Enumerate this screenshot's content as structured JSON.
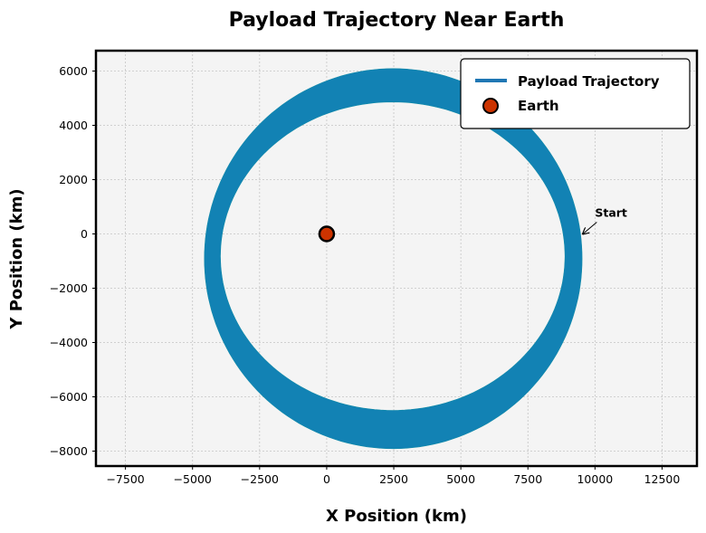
{
  "chart_data": {
    "type": "line",
    "title": "Payload Trajectory Near Earth",
    "xlabel": "X Position (km)",
    "ylabel": "Y Position (km)",
    "xlim": [
      -8600,
      13800
    ],
    "ylim": [
      -8550,
      6750
    ],
    "xticks": [
      -7500,
      -5000,
      -2500,
      0,
      2500,
      5000,
      7500,
      10000,
      12500
    ],
    "xtick_labels": [
      "−7500",
      "−5000",
      "−2500",
      "0",
      "2500",
      "5000",
      "7500",
      "10000",
      "12500"
    ],
    "yticks": [
      -8000,
      -6000,
      -4000,
      -2000,
      0,
      2000,
      4000,
      6000
    ],
    "ytick_labels": [
      "−8000",
      "−6000",
      "−4000",
      "−2000",
      "0",
      "2000",
      "4000",
      "6000"
    ],
    "grid": true,
    "legend_position": "top-right",
    "series": [
      {
        "name": "Payload Trajectory",
        "type": "line",
        "color": "#1f77b4",
        "band": {
          "outer": {
            "cx": 2480,
            "cy": -910,
            "rx": 7040,
            "ry": 7000
          },
          "inner": {
            "cx": 2460,
            "cy": -820,
            "rx": 6420,
            "ry": 5680
          },
          "fill": "#1282b4"
        }
      },
      {
        "name": "Earth",
        "type": "scatter",
        "x": [
          0
        ],
        "y": [
          0
        ],
        "color": "#cc3300",
        "edgecolor": "#000000"
      }
    ],
    "annotations": [
      {
        "text": "Start",
        "x": 10000,
        "y": 500,
        "arrow_to": [
          9550,
          0
        ]
      }
    ]
  }
}
